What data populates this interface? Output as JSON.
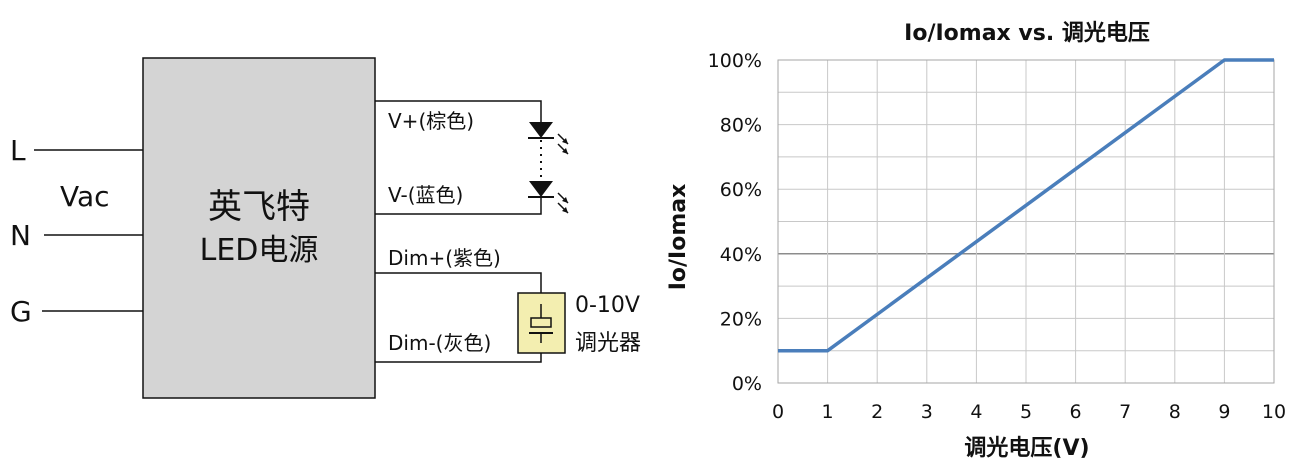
{
  "wiring": {
    "driver_name_line1": "英飞特",
    "driver_name_line2": "LED电源",
    "input_label": "Vac",
    "input_terminals": [
      "L",
      "N",
      "G"
    ],
    "wire_vplus": "V+(棕色)",
    "wire_vminus": "V-(蓝色)",
    "wire_dimplus": "Dim+(紫色)",
    "wire_dimminus": "Dim-(灰色)",
    "dimmer_line1": "0-10V",
    "dimmer_line2": "调光器",
    "colors": {
      "driver_box": "#d4d4d4",
      "dimmer_box": "#f3eeb0",
      "wire": "#111111"
    }
  },
  "chart_data": {
    "type": "line",
    "title": "Io/Iomax vs. 调光电压",
    "xlabel": "调光电压(V)",
    "ylabel": "Io/Iomax",
    "x_ticks": [
      "0",
      "1",
      "2",
      "3",
      "4",
      "5",
      "6",
      "7",
      "8",
      "9",
      "10"
    ],
    "y_ticks": [
      "0%",
      "20%",
      "40%",
      "60%",
      "80%",
      "100%"
    ],
    "xlim": [
      0,
      10
    ],
    "ylim": [
      0,
      100
    ],
    "grid": true,
    "series": [
      {
        "x": [
          0,
          1,
          9,
          10
        ],
        "y": [
          10,
          10,
          100,
          100
        ]
      }
    ],
    "colors": {
      "line": "#4a7ebb",
      "grid": "#c8c8c8",
      "grid_major": "#8c8c8c"
    }
  }
}
